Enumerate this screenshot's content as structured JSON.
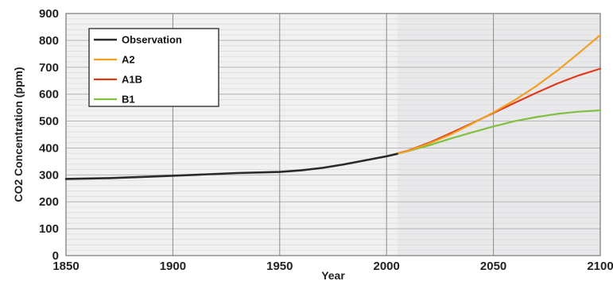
{
  "chart_data": {
    "type": "line",
    "title": "",
    "xlabel": "Year",
    "ylabel": "CO2 Concentration (ppm)",
    "xlim": [
      1850,
      2100
    ],
    "ylim": [
      0,
      900
    ],
    "x_ticks": [
      "1850",
      "1900",
      "1950",
      "2000",
      "2050",
      "2100"
    ],
    "y_ticks": [
      "0",
      "100",
      "200",
      "300",
      "400",
      "500",
      "600",
      "700",
      "800",
      "900"
    ],
    "grid": true,
    "legend_position": "top-left",
    "series": [
      {
        "name": "Observation",
        "color": "#2a2a2a",
        "points": [
          [
            1850,
            285
          ],
          [
            1870,
            288
          ],
          [
            1890,
            294
          ],
          [
            1910,
            300
          ],
          [
            1930,
            307
          ],
          [
            1950,
            311
          ],
          [
            1960,
            317
          ],
          [
            1970,
            326
          ],
          [
            1980,
            339
          ],
          [
            1990,
            354
          ],
          [
            2000,
            369
          ],
          [
            2005,
            378
          ]
        ]
      },
      {
        "name": "A2",
        "color": "#f0a020",
        "points": [
          [
            2000,
            369
          ],
          [
            2010,
            389
          ],
          [
            2020,
            417
          ],
          [
            2030,
            450
          ],
          [
            2040,
            490
          ],
          [
            2050,
            532
          ],
          [
            2060,
            578
          ],
          [
            2070,
            630
          ],
          [
            2080,
            688
          ],
          [
            2090,
            753
          ],
          [
            2100,
            820
          ]
        ]
      },
      {
        "name": "A1B",
        "color": "#e03a1a",
        "points": [
          [
            2000,
            369
          ],
          [
            2010,
            390
          ],
          [
            2020,
            420
          ],
          [
            2030,
            455
          ],
          [
            2040,
            492
          ],
          [
            2050,
            530
          ],
          [
            2060,
            568
          ],
          [
            2070,
            605
          ],
          [
            2080,
            640
          ],
          [
            2090,
            670
          ],
          [
            2100,
            695
          ]
        ]
      },
      {
        "name": "B1",
        "color": "#7fc040",
        "points": [
          [
            2000,
            369
          ],
          [
            2010,
            388
          ],
          [
            2020,
            410
          ],
          [
            2030,
            435
          ],
          [
            2040,
            458
          ],
          [
            2050,
            480
          ],
          [
            2060,
            500
          ],
          [
            2070,
            515
          ],
          [
            2080,
            527
          ],
          [
            2090,
            535
          ],
          [
            2100,
            540
          ]
        ]
      }
    ]
  }
}
